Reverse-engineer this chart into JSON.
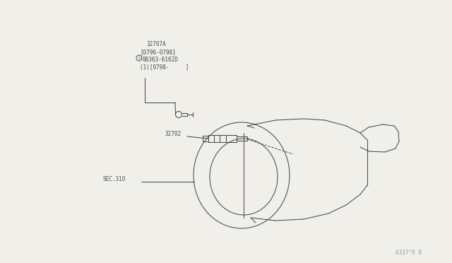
{
  "bg_color": "#f0efea",
  "line_color": "#4a4a4a",
  "text_color": "#4a4a4a",
  "title_code": "A337^0 0",
  "label_32707A": "32707A",
  "label_dates1": "[0796-0798]",
  "label_part1": "08363-6162D",
  "label_dates2": "(1)[0798-     ]",
  "label_32702": "32702",
  "label_sec310": "SEC.310",
  "font_size_labels": 5.5,
  "font_size_title": 5.5
}
